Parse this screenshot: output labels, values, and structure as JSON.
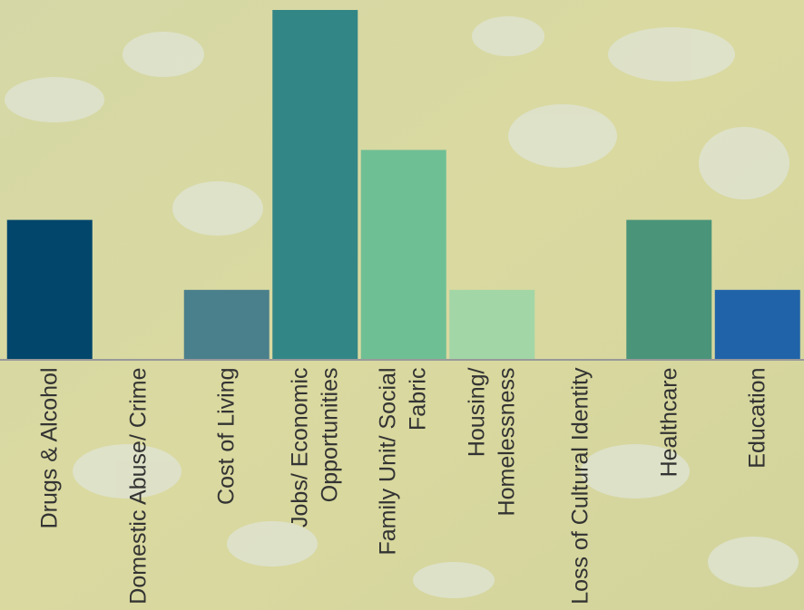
{
  "chart_data": {
    "type": "bar",
    "categories": [
      "Drugs & Alcohol",
      "Domestic Abuse/ Crime",
      "Cost of Living",
      "Jobs/ Economic Opportunities",
      "Family Unit/ Social Fabric",
      "Housing/ Homelessness",
      "Loss of Cultural Identity",
      "Healthcare",
      "Education"
    ],
    "values": [
      2,
      0,
      1,
      5,
      3,
      1,
      0,
      2,
      1
    ],
    "colors": [
      "#02466b",
      "#3a6f8c",
      "#4a7f8c",
      "#338686",
      "#6fbf94",
      "#a3d6a6",
      "#5a8f80",
      "#4a9479",
      "#2063a8"
    ],
    "ylim": [
      0,
      5
    ]
  }
}
